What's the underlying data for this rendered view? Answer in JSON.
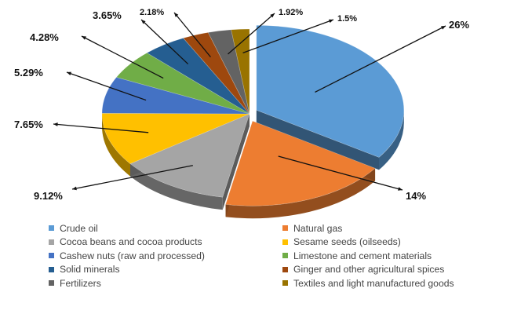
{
  "chart_data": {
    "type": "pie",
    "categories": [
      "Crude oil",
      "Natural gas",
      "Cocoa beans and cocoa products",
      "Sesame seeds (oilseeds)",
      "Cashew nuts (raw and processed)",
      "Limestone and cement materials",
      "Solid minerals",
      "Ginger and other agricultural spices",
      "Fertilizers",
      "Textiles and light manufactured goods"
    ],
    "values": [
      26,
      14,
      9.12,
      7.65,
      5.29,
      4.28,
      3.65,
      2.18,
      1.92,
      1.5
    ],
    "value_labels": [
      "26%",
      "14%",
      "9.12%",
      "7.65%",
      "5.29%",
      "4.28%",
      "3.65%",
      "2.18%",
      "1.92%",
      "1.5%"
    ],
    "colors": [
      "#5B9BD5",
      "#ED7D31",
      "#A5A5A5",
      "#FFC000",
      "#4472C4",
      "#70AD47",
      "#255E91",
      "#9E480E",
      "#636363",
      "#997300"
    ],
    "style": "3d-exploded",
    "legend_position": "bottom",
    "title": "",
    "xlabel": "",
    "ylabel": ""
  }
}
